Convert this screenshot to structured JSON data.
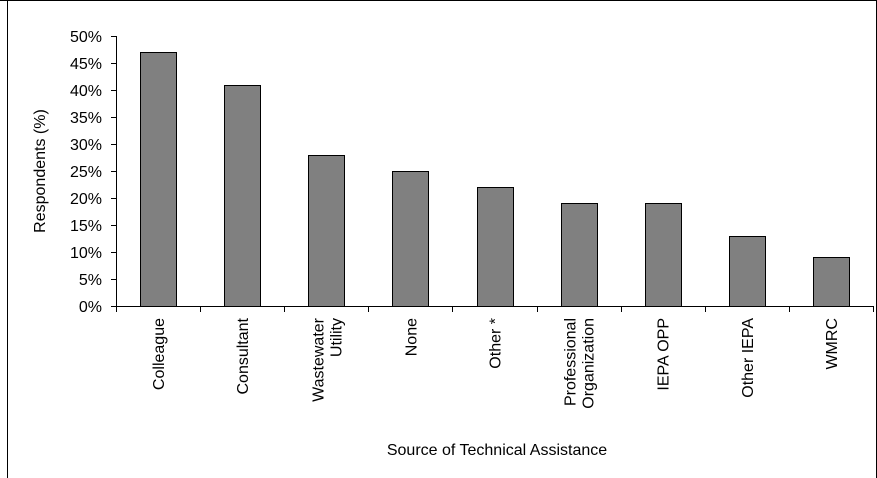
{
  "chart_data": {
    "type": "bar",
    "xlabel": "Source of Technical Assistance",
    "ylabel": "Respondents (%)",
    "categories": [
      [
        "Colleague"
      ],
      [
        "Consultant"
      ],
      [
        "Wastewater",
        "Utility"
      ],
      [
        "None"
      ],
      [
        "Other *"
      ],
      [
        "Professional",
        "Organization"
      ],
      [
        "IEPA OPP"
      ],
      [
        "Other IEPA"
      ],
      [
        "WMRC"
      ]
    ],
    "values": [
      47,
      41,
      28,
      25,
      22,
      19,
      19,
      13,
      9
    ],
    "ylim": [
      0,
      50
    ],
    "yticks": [
      0,
      5,
      10,
      15,
      20,
      25,
      30,
      35,
      40,
      45,
      50
    ],
    "ytick_labels": [
      "0%",
      "5%",
      "10%",
      "15%",
      "20%",
      "25%",
      "30%",
      "35%",
      "40%",
      "45%",
      "50%"
    ],
    "grid": false,
    "legend": "none",
    "bar_color": "#808080",
    "bar_edge_color": "#000000"
  }
}
